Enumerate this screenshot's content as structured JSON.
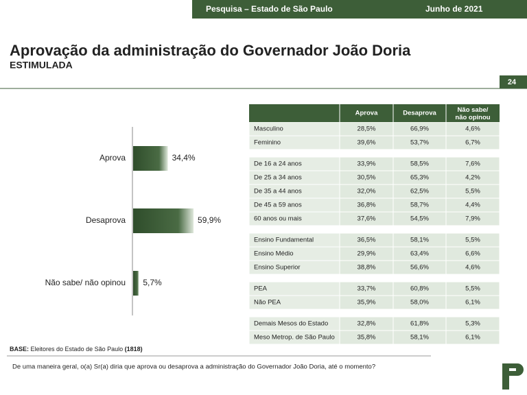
{
  "header": {
    "survey": "Pesquisa – Estado de São Paulo",
    "date": "Junho de 2021"
  },
  "title": "Aprovação da administração do Governador João Doria",
  "subtitle": "ESTIMULADA",
  "page_number": "24",
  "chart_data": {
    "type": "bar",
    "orientation": "horizontal",
    "color": "#3d5e38",
    "categories": [
      "Aprova",
      "Desaprova",
      "Não sabe/ não opinou"
    ],
    "values": [
      34.4,
      59.9,
      5.7
    ],
    "value_labels": [
      "34,4%",
      "59,9%",
      "5,7%"
    ]
  },
  "table": {
    "columns": [
      "Aprova",
      "Desaprova",
      "Não sabe/ não opinou"
    ],
    "groups": [
      [
        [
          "Masculino",
          "28,5%",
          "66,9%",
          "4,6%"
        ],
        [
          "Feminino",
          "39,6%",
          "53,7%",
          "6,7%"
        ]
      ],
      [
        [
          "De 16 a 24 anos",
          "33,9%",
          "58,5%",
          "7,6%"
        ],
        [
          "De 25 a 34 anos",
          "30,5%",
          "65,3%",
          "4,2%"
        ],
        [
          "De 35 a 44 anos",
          "32,0%",
          "62,5%",
          "5,5%"
        ],
        [
          "De 45 a 59 anos",
          "36,8%",
          "58,7%",
          "4,4%"
        ],
        [
          "60 anos ou mais",
          "37,6%",
          "54,5%",
          "7,9%"
        ]
      ],
      [
        [
          "Ensino Fundamental",
          "36,5%",
          "58,1%",
          "5,5%"
        ],
        [
          "Ensino Médio",
          "29,9%",
          "63,4%",
          "6,6%"
        ],
        [
          "Ensino Superior",
          "38,8%",
          "56,6%",
          "4,6%"
        ]
      ],
      [
        [
          "PEA",
          "33,7%",
          "60,8%",
          "5,5%"
        ],
        [
          "Não PEA",
          "35,9%",
          "58,0%",
          "6,1%"
        ]
      ],
      [
        [
          "Demais Mesos do Estado",
          "32,8%",
          "61,8%",
          "5,3%"
        ],
        [
          "Meso Metrop. de São Paulo",
          "35,8%",
          "58,1%",
          "6,1%"
        ]
      ]
    ]
  },
  "base": {
    "label": "BASE:",
    "text": "Eleitores do Estado de São Paulo",
    "count": "(1818)"
  },
  "question": "De uma maneira geral, o(a) Sr(a) diria que aprova ou desaprova a administração do Governador João Doria, até o momento?"
}
